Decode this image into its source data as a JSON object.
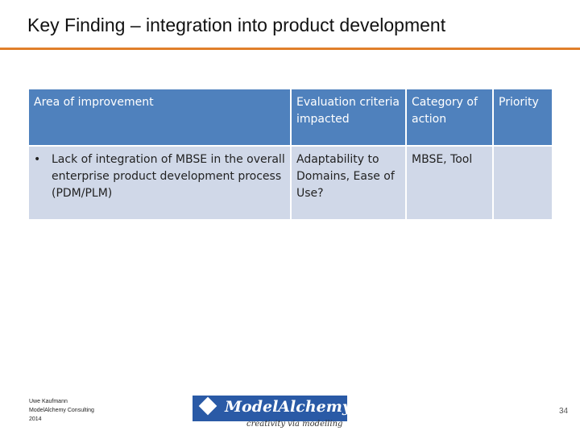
{
  "slide": {
    "title": "Key Finding – integration into product development",
    "page_number": "34"
  },
  "table": {
    "headers": [
      "Area of improvement",
      "Evaluation criteria impacted",
      "Category of action",
      "Priority"
    ],
    "rows": [
      {
        "bullet": "•",
        "area": "Lack of integration of MBSE in the overall enterprise product development process (PDM/PLM)",
        "criteria": "Adaptability to Domains, Ease of Use?",
        "category": "MBSE, Tool",
        "priority": ""
      }
    ]
  },
  "footer": {
    "author": "Uwe Kaufmann",
    "company": "ModelAlchemy Consulting",
    "year": "2014"
  },
  "logo": {
    "name": "ModelAlchemy",
    "tagline": "creativity via modelling"
  },
  "colors": {
    "accent_rule": "#e07f2a",
    "header_fill": "#4f81bd",
    "row_fill": "#d0d8e8",
    "logo_fill": "#2a5aa6"
  }
}
